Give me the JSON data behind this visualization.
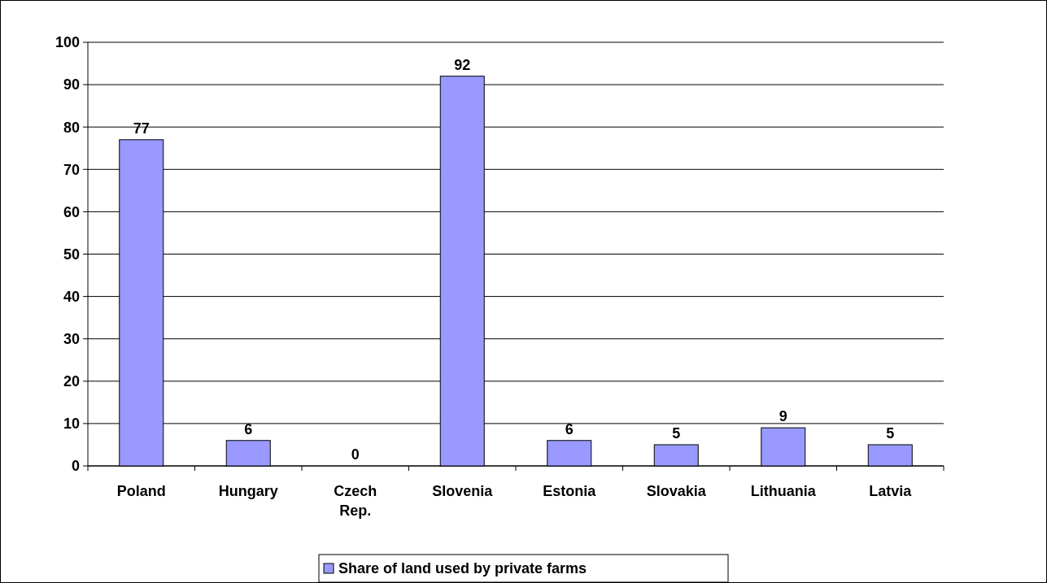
{
  "chart_data": {
    "type": "bar",
    "categories": [
      "Poland",
      "Hungary",
      "Czech Rep.",
      "Slovenia",
      "Estonia",
      "Slovakia",
      "Lithuania",
      "Latvia"
    ],
    "series": [
      {
        "name": "Share of land used by private farms",
        "color": "#9999ff",
        "values": [
          77,
          6,
          0,
          92,
          6,
          5,
          9,
          5
        ]
      }
    ],
    "ylim": [
      0,
      100
    ],
    "yticks": [
      0,
      10,
      20,
      30,
      40,
      50,
      60,
      70,
      80,
      90,
      100
    ],
    "grid": "y",
    "legend": "bottom",
    "data_labels": true
  }
}
